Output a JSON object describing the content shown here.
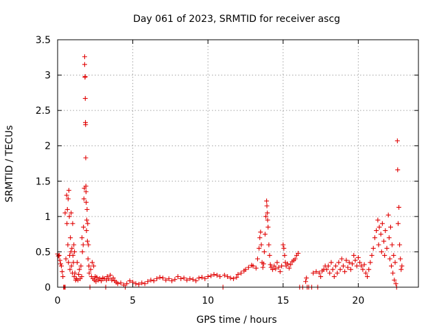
{
  "chart_data": {
    "type": "scatter",
    "title": "Day 061 of 2023, SRMTID for receiver ascg",
    "xlabel": "GPS time / hours",
    "ylabel": "SRMTID / TECUs",
    "xlim": [
      0,
      24
    ],
    "ylim": [
      0,
      3.5
    ],
    "xticks": [
      0,
      5,
      10,
      15,
      20
    ],
    "yticks": [
      0,
      0.5,
      1,
      1.5,
      2,
      2.5,
      3,
      3.5
    ],
    "xtick_labels": [
      "0",
      "5",
      "10",
      "15",
      "20"
    ],
    "ytick_labels": [
      "0",
      "0.5",
      "1",
      "1.5",
      "2",
      "2.5",
      "3",
      "3.5"
    ],
    "grid": true,
    "marker": "+",
    "color": "#e00000",
    "series": [
      {
        "name": "SRMTID",
        "points": [
          [
            0.0,
            0.47
          ],
          [
            0.05,
            0.44
          ],
          [
            0.1,
            0.45
          ],
          [
            0.15,
            0.38
          ],
          [
            0.2,
            0.33
          ],
          [
            0.25,
            0.3
          ],
          [
            0.3,
            0.22
          ],
          [
            0.35,
            0.15
          ],
          [
            0.4,
            0.0
          ],
          [
            0.45,
            0.0
          ],
          [
            0.5,
            1.05
          ],
          [
            0.5,
            0.0
          ],
          [
            0.55,
            0.4
          ],
          [
            0.6,
            1.3
          ],
          [
            0.62,
            0.9
          ],
          [
            0.65,
            1.1
          ],
          [
            0.68,
            0.6
          ],
          [
            0.7,
            1.25
          ],
          [
            0.72,
            0.35
          ],
          [
            0.75,
            1.37
          ],
          [
            0.78,
            1.0
          ],
          [
            0.8,
            0.45
          ],
          [
            0.82,
            0.25
          ],
          [
            0.85,
            0.7
          ],
          [
            0.88,
            0.5
          ],
          [
            0.9,
            1.05
          ],
          [
            0.92,
            0.3
          ],
          [
            0.95,
            0.55
          ],
          [
            0.98,
            0.2
          ],
          [
            1.0,
            0.9
          ],
          [
            1.02,
            0.45
          ],
          [
            1.05,
            0.35
          ],
          [
            1.08,
            0.6
          ],
          [
            1.1,
            0.15
          ],
          [
            1.12,
            0.5
          ],
          [
            1.15,
            0.2
          ],
          [
            1.2,
            0.1
          ],
          [
            1.25,
            0.12
          ],
          [
            1.3,
            0.35
          ],
          [
            1.35,
            0.1
          ],
          [
            1.4,
            0.18
          ],
          [
            1.45,
            0.25
          ],
          [
            1.5,
            0.12
          ],
          [
            1.55,
            0.3
          ],
          [
            1.6,
            0.15
          ],
          [
            1.62,
            0.7
          ],
          [
            1.65,
            0.5
          ],
          [
            1.7,
            0.6
          ],
          [
            1.72,
            0.85
          ],
          [
            1.75,
            1.25
          ],
          [
            1.78,
            1.4
          ],
          [
            1.8,
            3.26
          ],
          [
            1.8,
            3.15
          ],
          [
            1.82,
            2.97
          ],
          [
            1.83,
            2.98
          ],
          [
            1.84,
            2.67
          ],
          [
            1.85,
            2.33
          ],
          [
            1.86,
            2.3
          ],
          [
            1.87,
            1.83
          ],
          [
            1.88,
            1.43
          ],
          [
            1.89,
            1.35
          ],
          [
            1.9,
            1.2
          ],
          [
            1.92,
            0.8
          ],
          [
            1.94,
            0.95
          ],
          [
            1.96,
            1.1
          ],
          [
            1.98,
            0.65
          ],
          [
            2.0,
            0.9
          ],
          [
            2.02,
            0.4
          ],
          [
            2.05,
            0.6
          ],
          [
            2.08,
            0.3
          ],
          [
            2.1,
            0.2
          ],
          [
            2.15,
            0.0
          ],
          [
            2.2,
            0.25
          ],
          [
            2.25,
            0.15
          ],
          [
            2.3,
            0.35
          ],
          [
            2.35,
            0.12
          ],
          [
            2.4,
            0.3
          ],
          [
            2.45,
            0.1
          ],
          [
            2.5,
            0.15
          ],
          [
            2.55,
            0.08
          ],
          [
            2.6,
            0.14
          ],
          [
            2.7,
            0.1
          ],
          [
            2.8,
            0.12
          ],
          [
            2.9,
            0.09
          ],
          [
            3.0,
            0.13
          ],
          [
            3.1,
            0.12
          ],
          [
            3.2,
            0.0
          ],
          [
            3.25,
            0.1
          ],
          [
            3.3,
            0.15
          ],
          [
            3.4,
            0.12
          ],
          [
            3.5,
            0.17
          ],
          [
            3.6,
            0.1
          ],
          [
            3.7,
            0.13
          ],
          [
            3.8,
            0.09
          ],
          [
            3.9,
            0.07
          ],
          [
            4.0,
            0.05
          ],
          [
            4.2,
            0.06
          ],
          [
            4.4,
            0.03
          ],
          [
            4.5,
            0.0
          ],
          [
            4.6,
            0.05
          ],
          [
            4.8,
            0.09
          ],
          [
            5.0,
            0.07
          ],
          [
            5.2,
            0.05
          ],
          [
            5.4,
            0.04
          ],
          [
            5.6,
            0.06
          ],
          [
            5.8,
            0.05
          ],
          [
            6.0,
            0.08
          ],
          [
            6.2,
            0.1
          ],
          [
            6.4,
            0.09
          ],
          [
            6.6,
            0.12
          ],
          [
            6.8,
            0.14
          ],
          [
            7.0,
            0.13
          ],
          [
            7.2,
            0.1
          ],
          [
            7.4,
            0.12
          ],
          [
            7.6,
            0.09
          ],
          [
            7.8,
            0.11
          ],
          [
            8.0,
            0.15
          ],
          [
            8.2,
            0.12
          ],
          [
            8.4,
            0.13
          ],
          [
            8.6,
            0.1
          ],
          [
            8.8,
            0.12
          ],
          [
            9.0,
            0.11
          ],
          [
            9.2,
            0.09
          ],
          [
            9.4,
            0.13
          ],
          [
            9.6,
            0.14
          ],
          [
            9.8,
            0.12
          ],
          [
            10.0,
            0.15
          ],
          [
            10.2,
            0.16
          ],
          [
            10.4,
            0.18
          ],
          [
            10.6,
            0.17
          ],
          [
            10.8,
            0.15
          ],
          [
            11.0,
            0.0
          ],
          [
            11.1,
            0.17
          ],
          [
            11.3,
            0.15
          ],
          [
            11.5,
            0.13
          ],
          [
            11.7,
            0.12
          ],
          [
            11.9,
            0.14
          ],
          [
            12.0,
            0.18
          ],
          [
            12.2,
            0.2
          ],
          [
            12.4,
            0.23
          ],
          [
            12.5,
            0.25
          ],
          [
            12.7,
            0.28
          ],
          [
            12.9,
            0.31
          ],
          [
            13.0,
            0.3
          ],
          [
            13.2,
            0.27
          ],
          [
            13.3,
            0.4
          ],
          [
            13.4,
            0.55
          ],
          [
            13.45,
            0.7
          ],
          [
            13.5,
            0.78
          ],
          [
            13.55,
            0.6
          ],
          [
            13.6,
            0.35
          ],
          [
            13.65,
            0.28
          ],
          [
            13.7,
            0.33
          ],
          [
            13.75,
            0.5
          ],
          [
            13.8,
            0.75
          ],
          [
            13.85,
            1.0
          ],
          [
            13.9,
            1.22
          ],
          [
            13.92,
            1.15
          ],
          [
            13.95,
            1.05
          ],
          [
            13.97,
            0.95
          ],
          [
            14.0,
            0.85
          ],
          [
            14.05,
            0.6
          ],
          [
            14.1,
            0.45
          ],
          [
            14.15,
            0.32
          ],
          [
            14.2,
            0.28
          ],
          [
            14.3,
            0.25
          ],
          [
            14.4,
            0.3
          ],
          [
            14.5,
            0.26
          ],
          [
            14.6,
            0.35
          ],
          [
            14.7,
            0.28
          ],
          [
            14.8,
            0.22
          ],
          [
            14.9,
            0.3
          ],
          [
            15.0,
            0.6
          ],
          [
            15.05,
            0.55
          ],
          [
            15.1,
            0.45
          ],
          [
            15.15,
            0.35
          ],
          [
            15.2,
            0.3
          ],
          [
            15.3,
            0.33
          ],
          [
            15.4,
            0.27
          ],
          [
            15.5,
            0.32
          ],
          [
            15.6,
            0.36
          ],
          [
            15.7,
            0.38
          ],
          [
            15.8,
            0.4
          ],
          [
            15.9,
            0.45
          ],
          [
            16.0,
            0.48
          ],
          [
            16.1,
            0.0
          ],
          [
            16.3,
            0.0
          ],
          [
            16.5,
            0.08
          ],
          [
            16.55,
            0.13
          ],
          [
            16.6,
            0.0
          ],
          [
            16.7,
            0.0
          ],
          [
            16.9,
            0.0
          ],
          [
            17.0,
            0.2
          ],
          [
            17.2,
            0.22
          ],
          [
            17.3,
            0.0
          ],
          [
            17.4,
            0.2
          ],
          [
            17.5,
            0.15
          ],
          [
            17.6,
            0.23
          ],
          [
            17.7,
            0.25
          ],
          [
            17.8,
            0.3
          ],
          [
            17.9,
            0.25
          ],
          [
            18.0,
            0.3
          ],
          [
            18.1,
            0.2
          ],
          [
            18.2,
            0.35
          ],
          [
            18.3,
            0.25
          ],
          [
            18.4,
            0.15
          ],
          [
            18.5,
            0.3
          ],
          [
            18.6,
            0.2
          ],
          [
            18.7,
            0.35
          ],
          [
            18.8,
            0.25
          ],
          [
            18.9,
            0.4
          ],
          [
            19.0,
            0.3
          ],
          [
            19.1,
            0.22
          ],
          [
            19.2,
            0.38
          ],
          [
            19.3,
            0.28
          ],
          [
            19.4,
            0.35
          ],
          [
            19.5,
            0.25
          ],
          [
            19.6,
            0.33
          ],
          [
            19.7,
            0.45
          ],
          [
            19.8,
            0.38
          ],
          [
            19.9,
            0.3
          ],
          [
            20.0,
            0.42
          ],
          [
            20.1,
            0.35
          ],
          [
            20.2,
            0.3
          ],
          [
            20.3,
            0.25
          ],
          [
            20.4,
            0.32
          ],
          [
            20.5,
            0.2
          ],
          [
            20.6,
            0.15
          ],
          [
            20.7,
            0.25
          ],
          [
            20.8,
            0.35
          ],
          [
            20.9,
            0.45
          ],
          [
            21.0,
            0.55
          ],
          [
            21.1,
            0.7
          ],
          [
            21.2,
            0.8
          ],
          [
            21.3,
            0.95
          ],
          [
            21.35,
            0.6
          ],
          [
            21.4,
            0.85
          ],
          [
            21.5,
            0.75
          ],
          [
            21.55,
            0.5
          ],
          [
            21.6,
            0.9
          ],
          [
            21.7,
            0.65
          ],
          [
            21.75,
            0.45
          ],
          [
            21.8,
            0.8
          ],
          [
            21.9,
            0.55
          ],
          [
            22.0,
            1.02
          ],
          [
            22.05,
            0.7
          ],
          [
            22.1,
            0.4
          ],
          [
            22.15,
            0.85
          ],
          [
            22.2,
            0.3
          ],
          [
            22.25,
            0.6
          ],
          [
            22.3,
            0.2
          ],
          [
            22.35,
            0.45
          ],
          [
            22.4,
            0.1
          ],
          [
            22.45,
            0.35
          ],
          [
            22.5,
            0.05
          ],
          [
            22.55,
            0.0
          ],
          [
            22.6,
            2.07
          ],
          [
            22.62,
            1.66
          ],
          [
            22.65,
            0.9
          ],
          [
            22.7,
            1.13
          ],
          [
            22.75,
            0.6
          ],
          [
            22.8,
            0.4
          ],
          [
            22.85,
            0.25
          ],
          [
            22.9,
            0.3
          ]
        ]
      }
    ]
  }
}
